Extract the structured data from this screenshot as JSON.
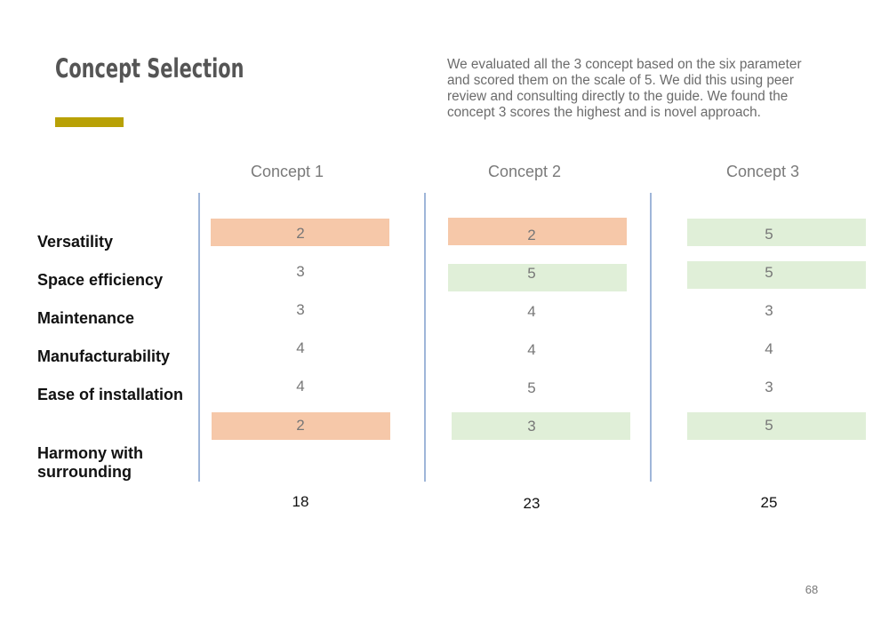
{
  "slide": {
    "title": "Concept Selection",
    "description": "We evaluated all the 3 concept based on the six parameter and scored them on the scale of 5. We did this using peer review and consulting directly to the guide. We found the concept 3 scores the highest and is novel approach.",
    "page_number": "68",
    "colors": {
      "accent": "#b8a106",
      "low_score": "#f6c8a9",
      "high_score": "#e0efd8",
      "divider": "#9fb6d9"
    }
  },
  "table": {
    "concepts": [
      "Concept 1",
      "Concept 2",
      "Concept 3"
    ],
    "parameters": [
      "Versatility",
      "Space efficiency",
      "Maintenance",
      "Manufacturability",
      "Ease of installation",
      "Harmony with surrounding"
    ],
    "scores": [
      [
        "2",
        "2",
        "5"
      ],
      [
        "3",
        "5",
        "5"
      ],
      [
        "3",
        "4",
        "3"
      ],
      [
        "4",
        "4",
        "4"
      ],
      [
        "4",
        "5",
        "3"
      ],
      [
        "2",
        "3",
        "5"
      ]
    ],
    "totals": [
      "18",
      "23",
      "25"
    ]
  }
}
